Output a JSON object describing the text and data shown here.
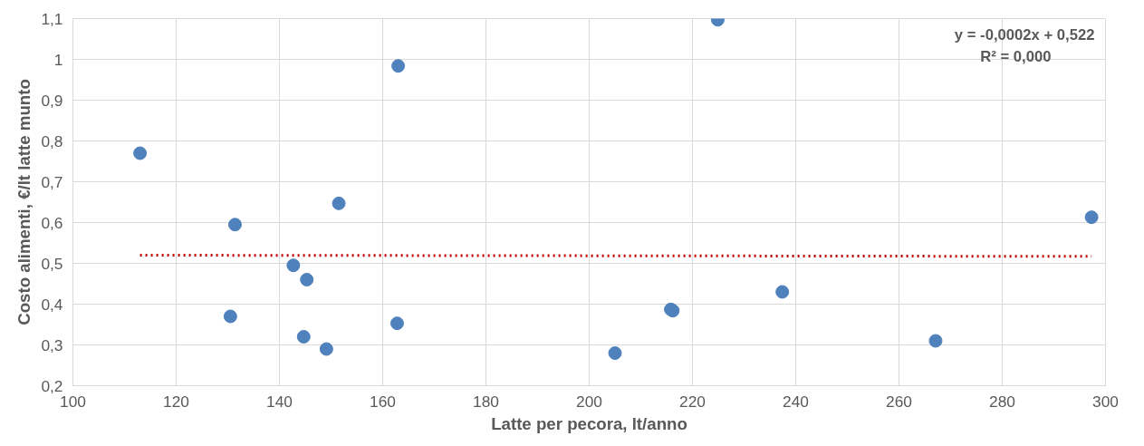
{
  "chart_data": {
    "type": "scatter",
    "xlabel": "Latte per pecora, lt/anno",
    "ylabel": "Costo alimenti, €/lt latte munto",
    "xlim": [
      100,
      300
    ],
    "xticks": [
      100,
      120,
      140,
      160,
      180,
      200,
      220,
      240,
      260,
      280,
      300
    ],
    "ylim": [
      0.2,
      1.1
    ],
    "yticks": [
      {
        "value": 0.2,
        "label": "0,2"
      },
      {
        "value": 0.3,
        "label": "0,3"
      },
      {
        "value": 0.4,
        "label": "0,4"
      },
      {
        "value": 0.5,
        "label": "0,5"
      },
      {
        "value": 0.6,
        "label": "0,6"
      },
      {
        "value": 0.7,
        "label": "0,7"
      },
      {
        "value": 0.8,
        "label": "0,8"
      },
      {
        "value": 0.9,
        "label": "0,9"
      },
      {
        "value": 1,
        "label": "1"
      },
      {
        "value": 1.1,
        "label": "1,1"
      }
    ],
    "grid": true,
    "marker": "circle",
    "series": [
      {
        "color": "#4f81bd",
        "x": [
          113,
          131.4,
          130.5,
          142.7,
          145.3,
          144.7,
          149.1,
          151.5,
          163,
          162.8,
          205,
          215.8,
          216.2,
          224.9,
          237.4,
          267.1,
          297.3
        ],
        "values": [
          0.77,
          0.595,
          0.37,
          0.495,
          0.46,
          0.32,
          0.29,
          0.647,
          0.984,
          0.353,
          0.28,
          0.387,
          0.384,
          1.097,
          0.43,
          0.31,
          0.613
        ]
      },
      {
        "type": "line",
        "color": "#c00000",
        "line_style": "dotted",
        "marker": "none",
        "x": [
          113,
          297.3
        ],
        "values": [
          0.52,
          0.517
        ]
      }
    ],
    "annotations": [
      "y = -0,0002x + 0,522",
      "R² = 0,000"
    ]
  }
}
